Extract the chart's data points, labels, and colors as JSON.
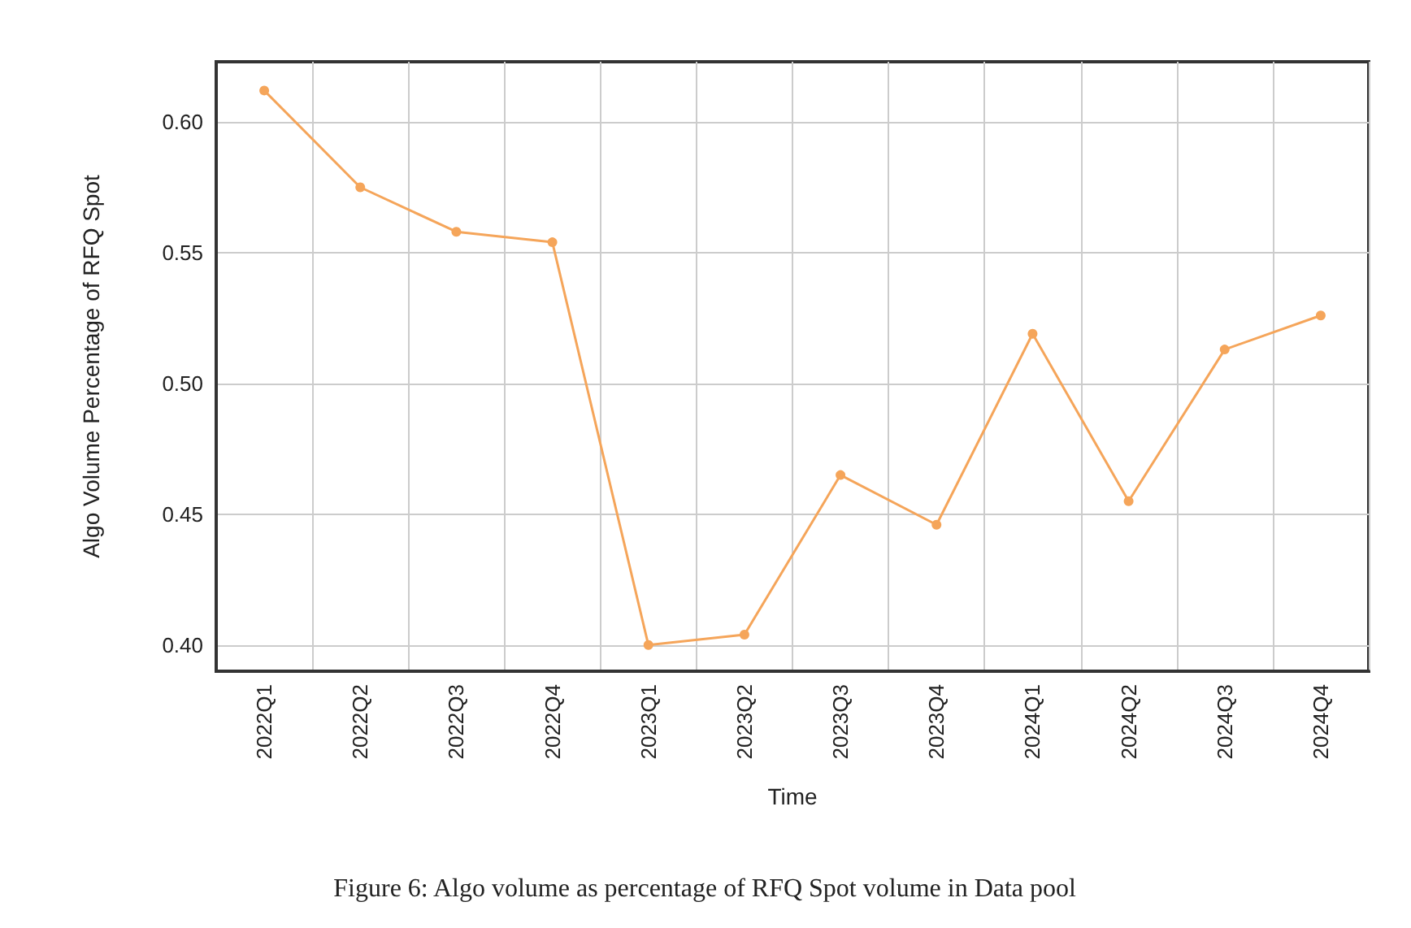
{
  "chart_data": {
    "type": "line",
    "xlabel": "Time",
    "ylabel": "Algo Volume Percentage of RFQ Spot",
    "categories": [
      "2022Q1",
      "2022Q2",
      "2022Q3",
      "2022Q4",
      "2023Q1",
      "2023Q2",
      "2023Q3",
      "2023Q4",
      "2024Q1",
      "2024Q2",
      "2024Q3",
      "2024Q4"
    ],
    "series": [
      {
        "color": "#f5a55a",
        "values": [
          0.612,
          0.575,
          0.558,
          0.554,
          0.4,
          0.404,
          0.465,
          0.446,
          0.519,
          0.455,
          0.513,
          0.526
        ]
      }
    ],
    "ylim": [
      0.39,
      0.623
    ],
    "yticks": [
      {
        "value": 0.4,
        "label": "0.40"
      },
      0.45,
      {
        "value": 0.5,
        "label": "0.50"
      },
      0.55,
      {
        "value": 0.6,
        "label": "0.60"
      }
    ],
    "grid": true,
    "marker": "circle",
    "line_style": "solid",
    "annotations": [
      "Figure 6: Algo volume as percentage of RFQ Spot volume in Data pool"
    ]
  }
}
